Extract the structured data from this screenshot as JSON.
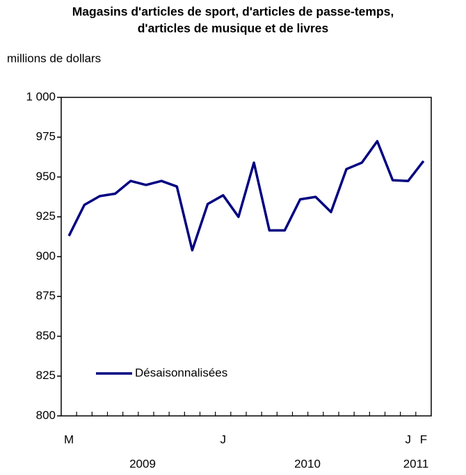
{
  "chart_data": {
    "type": "line",
    "title": [
      "Magasins d'articles de sport, d'articles de passe-temps,",
      "d'articles de musique et de livres"
    ],
    "y_label": "millions de dollars",
    "categories": [
      "M",
      null,
      null,
      null,
      null,
      null,
      null,
      null,
      null,
      null,
      "J",
      null,
      null,
      null,
      null,
      null,
      null,
      null,
      null,
      null,
      null,
      null,
      "J",
      "F"
    ],
    "year_labels": [
      "2009",
      "2010",
      "2011"
    ],
    "series": [
      {
        "name": "Désaisonnalisées",
        "color": "#000080",
        "values": [
          913,
          932.5,
          938,
          939.5,
          947.5,
          945,
          947.5,
          944,
          904,
          933,
          938.5,
          925,
          959,
          916.5,
          916.5,
          936,
          937.5,
          928,
          955,
          959,
          972.5,
          948,
          947.5,
          960
        ]
      }
    ],
    "ylim": [
      800,
      1000
    ],
    "yticks": [
      800,
      825,
      850,
      875,
      900,
      925,
      950,
      975,
      {
        "value": 1000,
        "label": "1 000"
      }
    ],
    "legend": "lower left"
  }
}
